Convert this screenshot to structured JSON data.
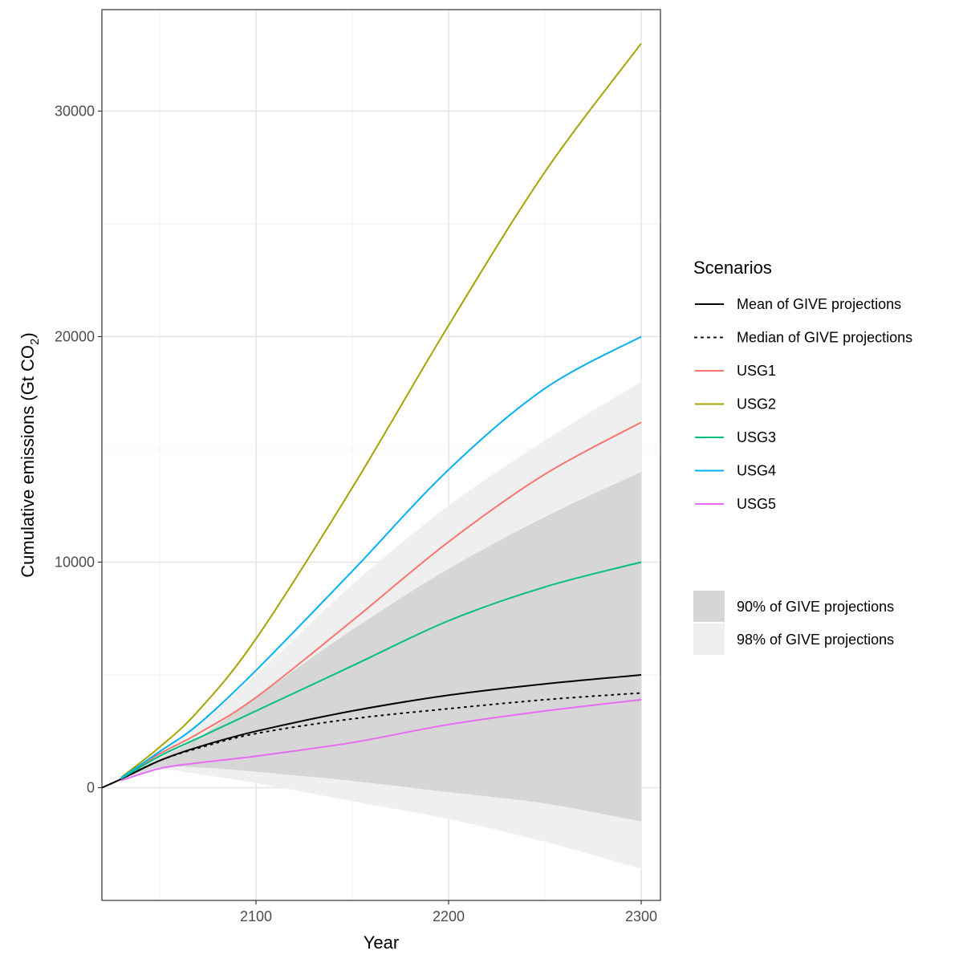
{
  "chart_data": {
    "type": "line",
    "xlabel": "Year",
    "ylabel": "Cumulative emissions (Gt CO",
    "ylabel_subscript": "2",
    "ylabel_close": ")",
    "xlim": [
      2020,
      2310
    ],
    "ylim": [
      -5000,
      34500
    ],
    "xticks": [
      2100,
      2200,
      2300
    ],
    "xtick_labels": [
      "2100",
      "2200",
      "2300"
    ],
    "yticks": [
      0,
      10000,
      20000,
      30000
    ],
    "ytick_labels": [
      "0",
      "10000",
      "20000",
      "30000"
    ],
    "x": [
      2020,
      2030,
      2050,
      2070,
      2100,
      2150,
      2200,
      2250,
      2300
    ],
    "series": [
      {
        "name": "Mean of GIVE projections",
        "color": "#000000",
        "style": "solid",
        "values": [
          0,
          380,
          1200,
          1800,
          2500,
          3400,
          4100,
          4600,
          5000
        ]
      },
      {
        "name": "Median of GIVE projections",
        "color": "#000000",
        "style": "dotted",
        "values": [
          null,
          380,
          1200,
          1750,
          2400,
          3050,
          3500,
          3900,
          4200
        ]
      },
      {
        "name": "USG1",
        "color": "#F8766D",
        "style": "solid",
        "values": [
          null,
          420,
          1500,
          2400,
          4000,
          7400,
          10900,
          13900,
          16200
        ]
      },
      {
        "name": "USG2",
        "color": "#A3A500",
        "style": "solid",
        "values": [
          null,
          450,
          1800,
          3400,
          6600,
          13300,
          20500,
          27300,
          33000
        ]
      },
      {
        "name": "USG3",
        "color": "#00BF7D",
        "style": "solid",
        "values": [
          null,
          400,
          1400,
          2200,
          3400,
          5400,
          7400,
          8900,
          10000
        ]
      },
      {
        "name": "USG4",
        "color": "#00B0F6",
        "style": "solid",
        "values": [
          null,
          430,
          1600,
          2800,
          5200,
          9600,
          14100,
          17700,
          20000
        ]
      },
      {
        "name": "USG5",
        "color": "#E76BF3",
        "style": "solid",
        "values": [
          null,
          320,
          850,
          1100,
          1400,
          2000,
          2800,
          3400,
          3900
        ]
      }
    ],
    "bands": [
      {
        "name": "98% of GIVE projections",
        "color": "#efefef",
        "x": [
          2030,
          2050,
          2070,
          2100,
          2150,
          2200,
          2250,
          2300
        ],
        "lower": [
          380,
          800,
          600,
          200,
          -600,
          -1400,
          -2400,
          -3600
        ],
        "upper": [
          400,
          1500,
          2800,
          5000,
          9000,
          12500,
          15400,
          18000
        ]
      },
      {
        "name": "90% of GIVE projections",
        "color": "#d6d6d6",
        "x": [
          2030,
          2050,
          2070,
          2100,
          2150,
          2200,
          2250,
          2300
        ],
        "lower": [
          380,
          900,
          900,
          700,
          300,
          -200,
          -700,
          -1500
        ],
        "upper": [
          400,
          1300,
          2200,
          4000,
          7000,
          9700,
          12000,
          14000
        ]
      }
    ],
    "legend": {
      "title": "Scenarios",
      "band_order": [
        "90% of GIVE projections",
        "98% of GIVE projections"
      ]
    }
  }
}
